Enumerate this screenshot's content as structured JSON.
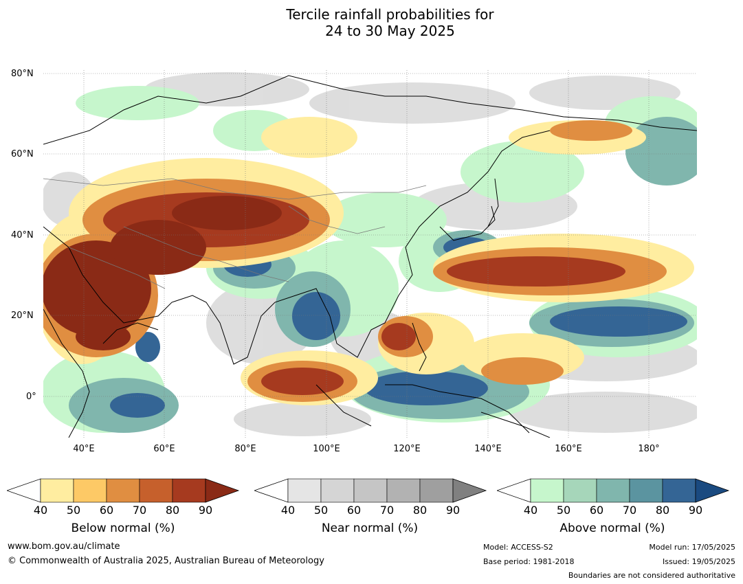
{
  "title": {
    "line1": "Tercile rainfall probabilities for",
    "line2": "24 to 30 May 2025"
  },
  "lat_labels": [
    "80°N",
    "60°N",
    "40°N",
    "20°N",
    "0°"
  ],
  "lon_labels": [
    "40°E",
    "60°E",
    "80°E",
    "100°E",
    "120°E",
    "140°E",
    "160°E",
    "180°"
  ],
  "colorbars": [
    {
      "label": "Below normal (%)",
      "ticks": [
        "40",
        "50",
        "60",
        "70",
        "80",
        "90"
      ],
      "colors": [
        "#ffeda0",
        "#fdc966",
        "#e08e41",
        "#c6602c",
        "#a63a1f",
        "#8a2a16"
      ]
    },
    {
      "label": "Near normal (%)",
      "ticks": [
        "40",
        "50",
        "60",
        "70",
        "80",
        "90"
      ],
      "colors": [
        "#e5e5e5",
        "#d5d5d5",
        "#c5c5c5",
        "#b2b2b2",
        "#9f9f9f",
        "#808080"
      ]
    },
    {
      "label": "Above normal (%)",
      "ticks": [
        "40",
        "50",
        "60",
        "70",
        "80",
        "90"
      ],
      "colors": [
        "#c6f6cc",
        "#a6d6ba",
        "#80b6ad",
        "#5b94a0",
        "#346595",
        "#1a4a80"
      ]
    }
  ],
  "footer": {
    "url": "www.bom.gov.au/climate",
    "copyright": "© Commonwealth of Australia 2025, Australian Bureau of Meteorology",
    "model": "Model: ACCESS-S2",
    "base_period": "Base period: 1981-2018",
    "model_run": "Model run: 17/05/2025",
    "issued": "Issued: 19/05/2025",
    "disclaimer": "Boundaries are not considered authoritative"
  }
}
